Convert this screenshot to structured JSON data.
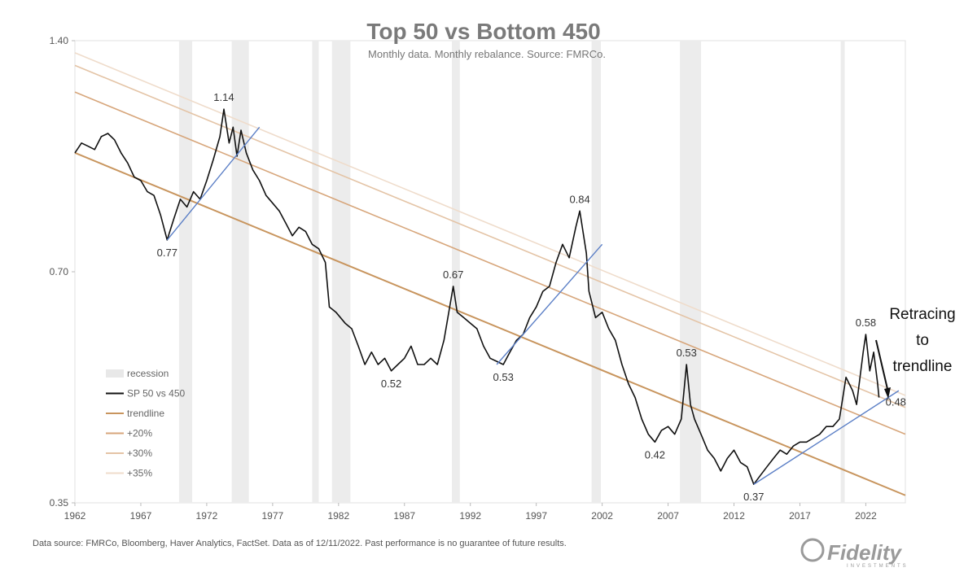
{
  "chart_data": {
    "type": "line",
    "title": "Top 50 vs Bottom 450",
    "subtitle": "Monthly data.  Monthly rebalance. Source: FMRCo.",
    "y_scale": "log",
    "ylim": [
      0.35,
      1.4
    ],
    "x_range": [
      1962,
      2025
    ],
    "y_ticks": [
      {
        "value": 0.35,
        "label": "0.35"
      },
      {
        "value": 0.7,
        "label": "0.70"
      },
      {
        "value": 1.4,
        "label": "1.40"
      }
    ],
    "x_ticks": [
      1962,
      1967,
      1972,
      1977,
      1982,
      1987,
      1992,
      1997,
      2002,
      2007,
      2012,
      2017,
      2022
    ],
    "recessions": [
      [
        1969.9,
        1970.9
      ],
      [
        1973.9,
        1975.2
      ],
      [
        1980.0,
        1980.5
      ],
      [
        1981.5,
        1982.9
      ],
      [
        1990.6,
        1991.2
      ],
      [
        2001.2,
        2001.9
      ],
      [
        2007.9,
        2009.5
      ],
      [
        2020.1,
        2020.4
      ]
    ],
    "series": [
      {
        "name": "SP 50 vs 450",
        "color": "#111111",
        "points": [
          [
            1962.0,
            1.0
          ],
          [
            1962.5,
            1.03
          ],
          [
            1963.0,
            1.02
          ],
          [
            1963.5,
            1.01
          ],
          [
            1964.0,
            1.05
          ],
          [
            1964.5,
            1.06
          ],
          [
            1965.0,
            1.04
          ],
          [
            1965.5,
            1.0
          ],
          [
            1966.0,
            0.97
          ],
          [
            1966.5,
            0.93
          ],
          [
            1967.0,
            0.92
          ],
          [
            1967.5,
            0.89
          ],
          [
            1968.0,
            0.88
          ],
          [
            1968.5,
            0.83
          ],
          [
            1969.0,
            0.77
          ],
          [
            1969.5,
            0.82
          ],
          [
            1970.0,
            0.87
          ],
          [
            1970.5,
            0.85
          ],
          [
            1971.0,
            0.89
          ],
          [
            1971.5,
            0.87
          ],
          [
            1972.0,
            0.92
          ],
          [
            1972.5,
            0.98
          ],
          [
            1973.0,
            1.05
          ],
          [
            1973.3,
            1.14
          ],
          [
            1973.7,
            1.03
          ],
          [
            1974.0,
            1.08
          ],
          [
            1974.3,
            0.99
          ],
          [
            1974.6,
            1.07
          ],
          [
            1975.0,
            1.0
          ],
          [
            1975.5,
            0.95
          ],
          [
            1976.0,
            0.92
          ],
          [
            1976.5,
            0.88
          ],
          [
            1977.0,
            0.86
          ],
          [
            1977.5,
            0.84
          ],
          [
            1978.0,
            0.81
          ],
          [
            1978.5,
            0.78
          ],
          [
            1979.0,
            0.8
          ],
          [
            1979.5,
            0.79
          ],
          [
            1980.0,
            0.76
          ],
          [
            1980.5,
            0.75
          ],
          [
            1981.0,
            0.72
          ],
          [
            1981.3,
            0.63
          ],
          [
            1981.8,
            0.62
          ],
          [
            1982.5,
            0.6
          ],
          [
            1983.0,
            0.59
          ],
          [
            1983.5,
            0.56
          ],
          [
            1984.0,
            0.53
          ],
          [
            1984.5,
            0.55
          ],
          [
            1985.0,
            0.53
          ],
          [
            1985.5,
            0.54
          ],
          [
            1986.0,
            0.52
          ],
          [
            1986.5,
            0.53
          ],
          [
            1987.0,
            0.54
          ],
          [
            1987.5,
            0.56
          ],
          [
            1988.0,
            0.53
          ],
          [
            1988.5,
            0.53
          ],
          [
            1989.0,
            0.54
          ],
          [
            1989.5,
            0.53
          ],
          [
            1990.0,
            0.57
          ],
          [
            1990.7,
            0.67
          ],
          [
            1991.0,
            0.62
          ],
          [
            1991.5,
            0.61
          ],
          [
            1992.0,
            0.6
          ],
          [
            1992.5,
            0.59
          ],
          [
            1993.0,
            0.56
          ],
          [
            1993.5,
            0.54
          ],
          [
            1994.0,
            0.535
          ],
          [
            1994.5,
            0.53
          ],
          [
            1995.0,
            0.55
          ],
          [
            1995.5,
            0.57
          ],
          [
            1996.0,
            0.58
          ],
          [
            1996.5,
            0.61
          ],
          [
            1997.0,
            0.63
          ],
          [
            1997.5,
            0.66
          ],
          [
            1998.0,
            0.67
          ],
          [
            1998.5,
            0.72
          ],
          [
            1999.0,
            0.76
          ],
          [
            1999.5,
            0.73
          ],
          [
            2000.0,
            0.8
          ],
          [
            2000.3,
            0.84
          ],
          [
            2000.8,
            0.74
          ],
          [
            2001.0,
            0.66
          ],
          [
            2001.5,
            0.61
          ],
          [
            2002.0,
            0.62
          ],
          [
            2002.5,
            0.59
          ],
          [
            2003.0,
            0.57
          ],
          [
            2003.5,
            0.53
          ],
          [
            2004.0,
            0.5
          ],
          [
            2004.5,
            0.48
          ],
          [
            2005.0,
            0.45
          ],
          [
            2005.5,
            0.43
          ],
          [
            2006.0,
            0.42
          ],
          [
            2006.5,
            0.435
          ],
          [
            2007.0,
            0.44
          ],
          [
            2007.5,
            0.43
          ],
          [
            2008.0,
            0.45
          ],
          [
            2008.4,
            0.53
          ],
          [
            2008.7,
            0.47
          ],
          [
            2009.0,
            0.45
          ],
          [
            2009.5,
            0.43
          ],
          [
            2010.0,
            0.41
          ],
          [
            2010.5,
            0.4
          ],
          [
            2011.0,
            0.385
          ],
          [
            2011.5,
            0.4
          ],
          [
            2012.0,
            0.41
          ],
          [
            2012.5,
            0.395
          ],
          [
            2013.0,
            0.39
          ],
          [
            2013.5,
            0.37
          ],
          [
            2014.0,
            0.38
          ],
          [
            2014.5,
            0.39
          ],
          [
            2015.0,
            0.4
          ],
          [
            2015.5,
            0.41
          ],
          [
            2016.0,
            0.405
          ],
          [
            2016.5,
            0.415
          ],
          [
            2017.0,
            0.42
          ],
          [
            2017.5,
            0.42
          ],
          [
            2018.0,
            0.425
          ],
          [
            2018.5,
            0.43
          ],
          [
            2019.0,
            0.44
          ],
          [
            2019.5,
            0.44
          ],
          [
            2020.0,
            0.45
          ],
          [
            2020.5,
            0.51
          ],
          [
            2021.0,
            0.49
          ],
          [
            2021.3,
            0.47
          ],
          [
            2021.8,
            0.55
          ],
          [
            2022.0,
            0.58
          ],
          [
            2022.3,
            0.52
          ],
          [
            2022.6,
            0.55
          ],
          [
            2022.9,
            0.5
          ],
          [
            2023.0,
            0.48
          ]
        ]
      },
      {
        "name": "trendline",
        "color": "#c8955e",
        "line": [
          [
            1962.0,
            1.0
          ],
          [
            2025.0,
            0.358
          ]
        ]
      },
      {
        "name": "+20%",
        "color": "#d7a67b",
        "line": [
          [
            1962.0,
            1.2
          ],
          [
            2025.0,
            0.43
          ]
        ]
      },
      {
        "name": "+30%",
        "color": "#e4c4a6",
        "line": [
          [
            1962.0,
            1.3
          ],
          [
            2025.0,
            0.466
          ]
        ]
      },
      {
        "name": "+35%",
        "color": "#efdccb",
        "line": [
          [
            1962.0,
            1.35
          ],
          [
            2025.0,
            0.483
          ]
        ]
      }
    ],
    "support_lines": [
      {
        "color": "#5b7fc6",
        "line": [
          [
            1969.0,
            0.77
          ],
          [
            1976.0,
            1.08
          ]
        ]
      },
      {
        "color": "#5b7fc6",
        "line": [
          [
            1994.0,
            0.53
          ],
          [
            2002.0,
            0.76
          ]
        ]
      },
      {
        "color": "#5b7fc6",
        "line": [
          [
            2013.5,
            0.37
          ],
          [
            2024.5,
            0.49
          ]
        ]
      }
    ],
    "annotations": [
      {
        "x": 1973.3,
        "y": 1.14,
        "label": "1.14",
        "pos": "above"
      },
      {
        "x": 1969.0,
        "y": 0.77,
        "label": "0.77",
        "pos": "below"
      },
      {
        "x": 1990.7,
        "y": 0.67,
        "label": "0.67",
        "pos": "above"
      },
      {
        "x": 1986.0,
        "y": 0.52,
        "label": "0.52",
        "pos": "below"
      },
      {
        "x": 1994.5,
        "y": 0.53,
        "label": "0.53",
        "pos": "below"
      },
      {
        "x": 2000.3,
        "y": 0.84,
        "label": "0.84",
        "pos": "above"
      },
      {
        "x": 2008.4,
        "y": 0.53,
        "label": "0.53",
        "pos": "above"
      },
      {
        "x": 2006.0,
        "y": 0.42,
        "label": "0.42",
        "pos": "below"
      },
      {
        "x": 2013.5,
        "y": 0.37,
        "label": "0.37",
        "pos": "below"
      },
      {
        "x": 2022.0,
        "y": 0.58,
        "label": "0.58",
        "pos": "above"
      },
      {
        "x": 2023.0,
        "y": 0.48,
        "label": "0.48",
        "pos": "right"
      }
    ],
    "legend": {
      "placement": "left-middle",
      "items": [
        {
          "label": "recession",
          "color": "#e8e8e8",
          "kind": "swatch"
        },
        {
          "label": "SP 50 vs 450",
          "color": "#111111",
          "kind": "line"
        },
        {
          "label": "trendline",
          "color": "#c8955e",
          "kind": "line"
        },
        {
          "label": "+20%",
          "color": "#d7a67b",
          "kind": "line"
        },
        {
          "label": "+30%",
          "color": "#e4c4a6",
          "kind": "line"
        },
        {
          "label": "+35%",
          "color": "#efdccb",
          "kind": "line"
        }
      ]
    },
    "callout": {
      "lines": [
        "Retracing",
        "to",
        "trendline"
      ]
    }
  },
  "footer": {
    "source": "Data source: FMRCo, Bloomberg, Haver Analytics, FactSet. Data as of 12/11/2022. Past performance is no guarantee of future results.",
    "logo": "Fidelity",
    "logo_sub": "INVESTMENTS"
  }
}
